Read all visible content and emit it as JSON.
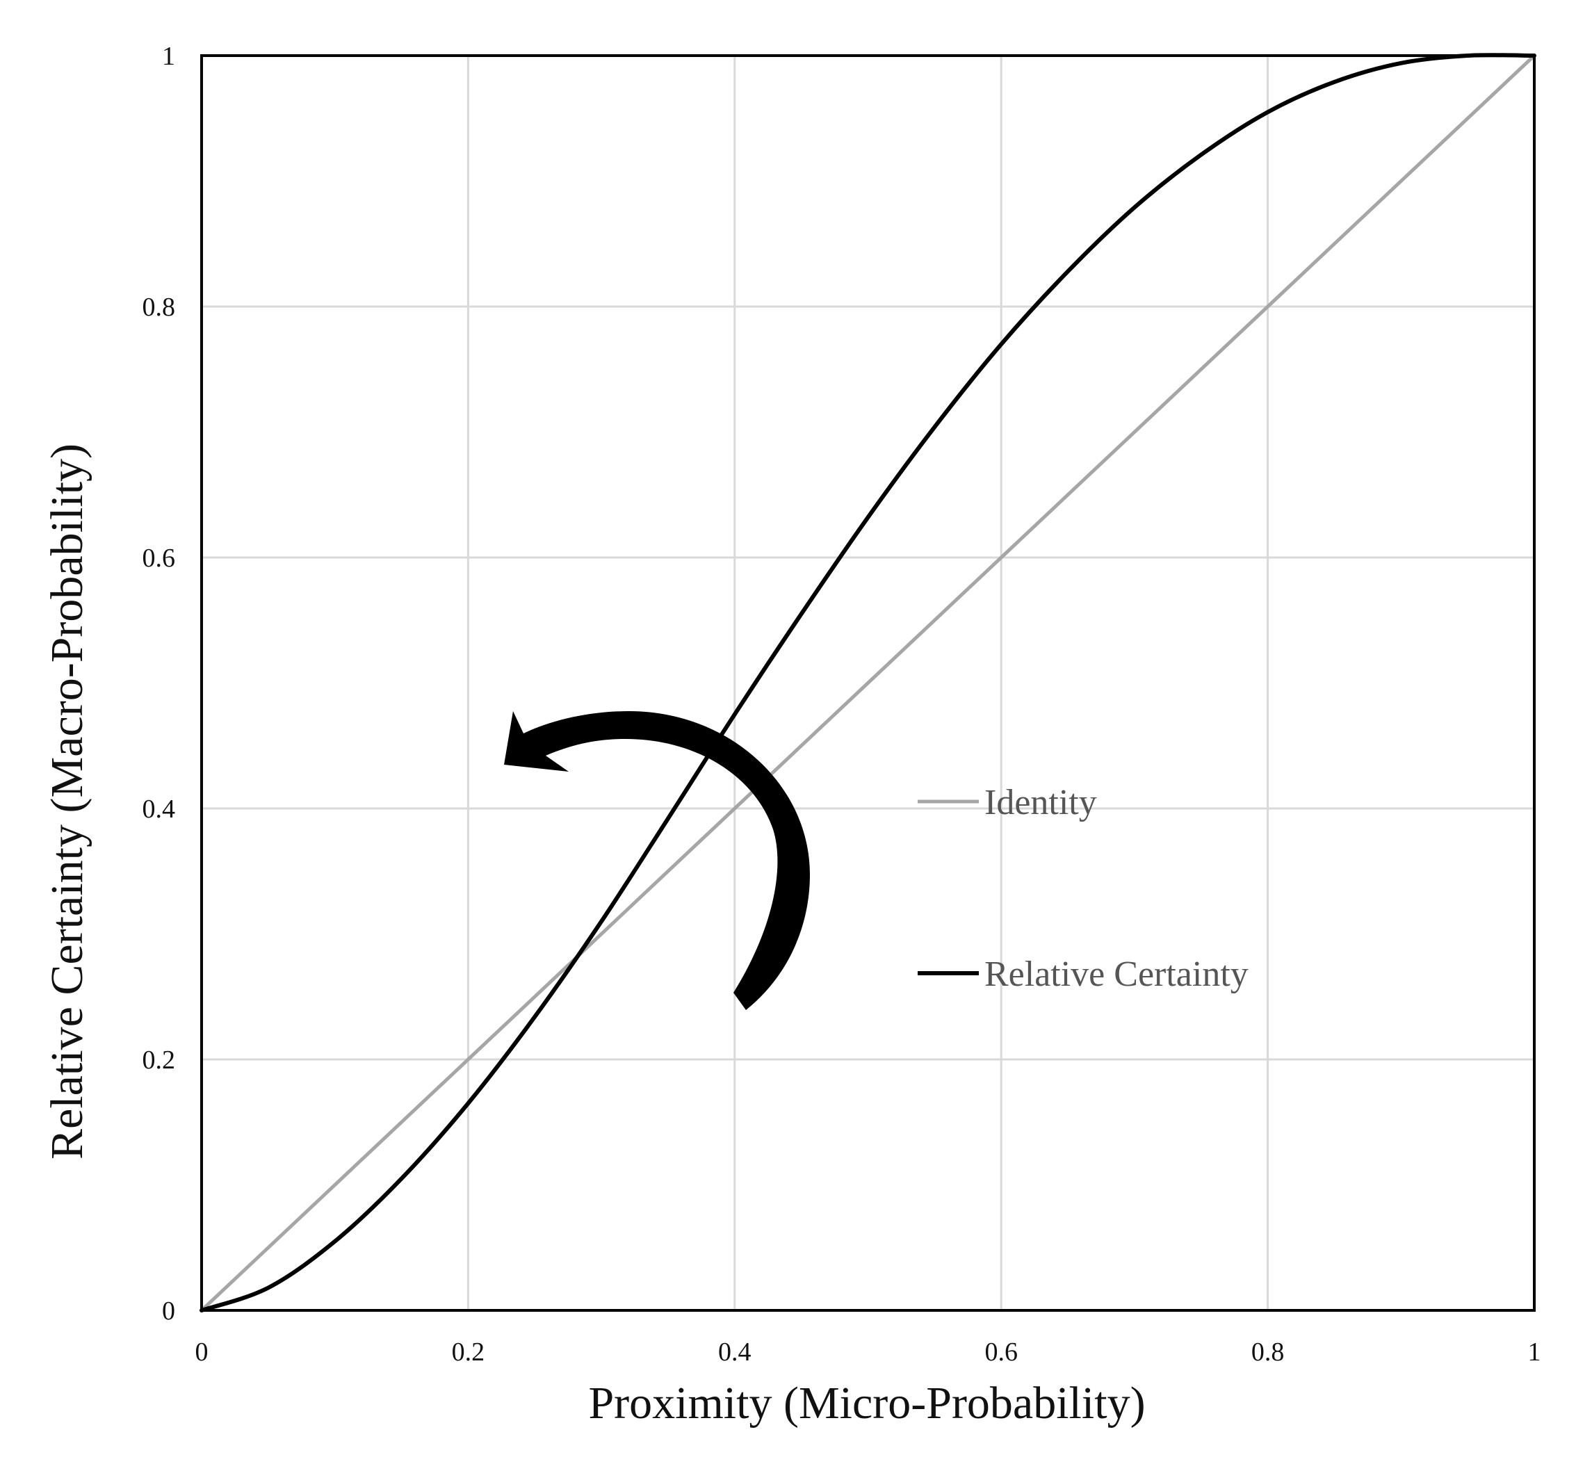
{
  "chart_data": {
    "type": "line",
    "title": "",
    "xlabel": "Proximity (Micro-Probability)",
    "ylabel": "Relative Certainty (Macro-Probability)",
    "xlim": [
      0,
      1
    ],
    "ylim": [
      0,
      1
    ],
    "x_ticks": [
      "0",
      "0.2",
      "0.4",
      "0.6",
      "0.8",
      "1"
    ],
    "y_ticks": [
      "0",
      "0.2",
      "0.4",
      "0.6",
      "0.8",
      "1"
    ],
    "grid": true,
    "legend_position": "right-center",
    "series": [
      {
        "name": "Identity",
        "color": "#a6a6a6",
        "x": [
          0,
          0.2,
          0.4,
          0.6,
          0.8,
          1
        ],
        "y": [
          0,
          0.2,
          0.4,
          0.6,
          0.8,
          1
        ]
      },
      {
        "name": "Relative Certainty",
        "color": "#000000",
        "x": [
          0,
          0.05,
          0.1,
          0.15,
          0.2,
          0.25,
          0.3,
          0.35,
          0.4,
          0.45,
          0.5,
          0.55,
          0.6,
          0.65,
          0.7,
          0.75,
          0.8,
          0.85,
          0.9,
          0.95,
          1
        ],
        "y": [
          0,
          0.018,
          0.055,
          0.105,
          0.165,
          0.234,
          0.31,
          0.392,
          0.475,
          0.555,
          0.632,
          0.704,
          0.77,
          0.828,
          0.879,
          0.921,
          0.955,
          0.979,
          0.994,
          1.0,
          1.0
        ]
      }
    ],
    "annotation": {
      "type": "curved-arrow",
      "color": "#000000",
      "direction": "counter-clockwise"
    }
  }
}
